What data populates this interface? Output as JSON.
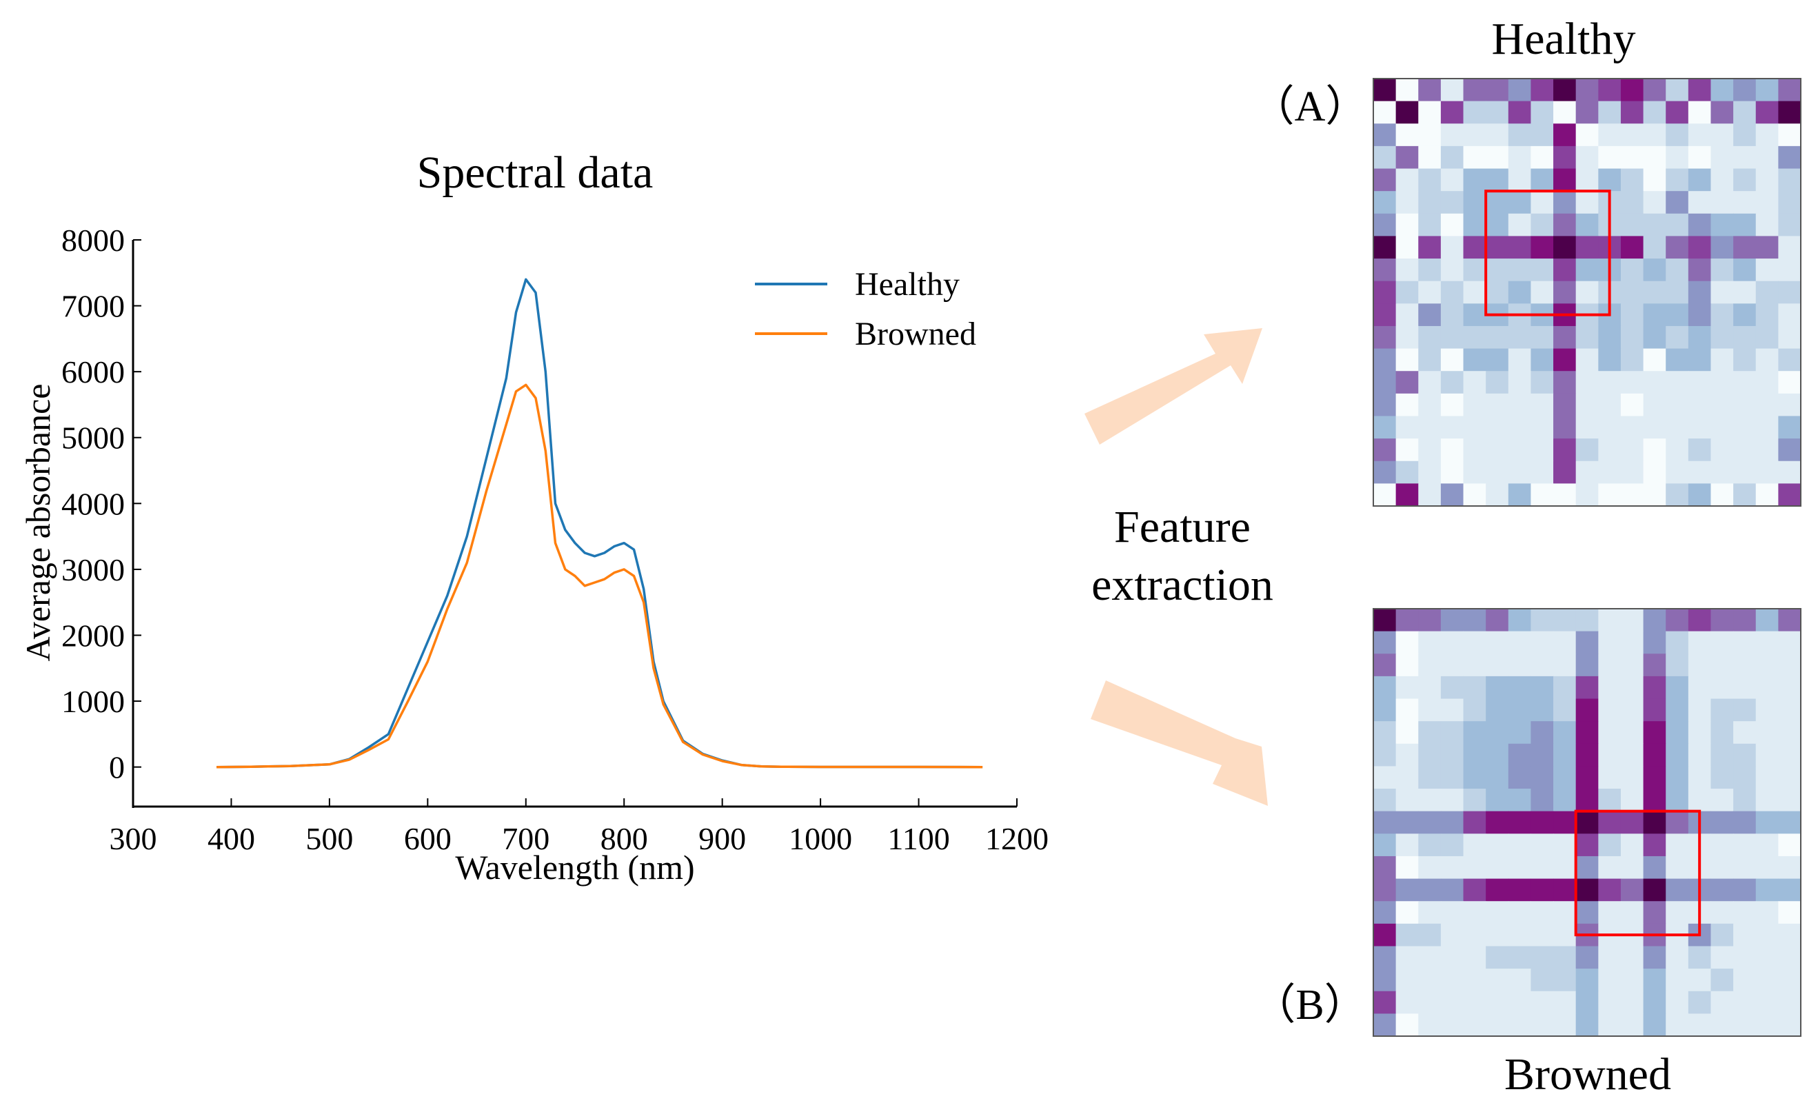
{
  "chart_data": [
    {
      "type": "line",
      "title": "Spectral data",
      "xlabel": "Wavelength (nm)",
      "ylabel": "Average absorbance",
      "xlim": [
        300,
        1200
      ],
      "ylim": [
        -600,
        8000
      ],
      "xticks": [
        300,
        400,
        500,
        600,
        700,
        800,
        900,
        1000,
        1100,
        1200
      ],
      "yticks": [
        0,
        1000,
        2000,
        3000,
        4000,
        5000,
        6000,
        7000,
        8000
      ],
      "legend_position": "top-right",
      "series": [
        {
          "name": "Healthy",
          "color": "#1f77b4",
          "x": [
            385,
            420,
            460,
            500,
            520,
            540,
            560,
            580,
            600,
            620,
            640,
            660,
            680,
            690,
            700,
            710,
            720,
            730,
            740,
            750,
            760,
            770,
            780,
            790,
            800,
            810,
            820,
            830,
            840,
            860,
            880,
            900,
            920,
            940,
            960,
            1000,
            1100,
            1165
          ],
          "y": [
            0,
            5,
            15,
            40,
            120,
            300,
            500,
            1200,
            1900,
            2600,
            3500,
            4700,
            5900,
            6900,
            7400,
            7200,
            6000,
            4000,
            3600,
            3400,
            3250,
            3200,
            3250,
            3350,
            3400,
            3300,
            2700,
            1600,
            1000,
            400,
            200,
            100,
            30,
            10,
            5,
            2,
            2,
            0
          ]
        },
        {
          "name": "Browned",
          "color": "#ff7f0e",
          "x": [
            385,
            420,
            460,
            500,
            520,
            540,
            560,
            580,
            600,
            620,
            640,
            660,
            680,
            690,
            700,
            710,
            720,
            730,
            740,
            750,
            760,
            770,
            780,
            790,
            800,
            810,
            820,
            830,
            840,
            860,
            880,
            900,
            920,
            940,
            960,
            1000,
            1100,
            1165
          ],
          "y": [
            0,
            5,
            15,
            40,
            110,
            260,
            420,
            1000,
            1600,
            2400,
            3100,
            4200,
            5200,
            5700,
            5800,
            5600,
            4800,
            3400,
            3000,
            2900,
            2750,
            2800,
            2850,
            2950,
            3000,
            2900,
            2500,
            1500,
            950,
            380,
            190,
            90,
            30,
            10,
            5,
            2,
            2,
            0
          ]
        }
      ]
    },
    {
      "type": "heatmap",
      "title": "Healthy",
      "panel_label": "（A）",
      "rows": 19,
      "cols": 19,
      "colormap": [
        "#f7fcfd",
        "#e0ecf4",
        "#bfd3e6",
        "#9ebcda",
        "#8c96c6",
        "#8c6bb1",
        "#88419d",
        "#810f7c",
        "#4d004b"
      ],
      "highlight": {
        "rows": [
          5,
          10
        ],
        "cols": [
          5,
          10
        ],
        "color": "#ff0000"
      },
      "values": [
        [
          8,
          0,
          5,
          1,
          5,
          5,
          4,
          6,
          8,
          5,
          6,
          7,
          5,
          2,
          6,
          3,
          4,
          3,
          5
        ],
        [
          0,
          8,
          0,
          6,
          2,
          2,
          6,
          2,
          0,
          5,
          2,
          6,
          2,
          6,
          0,
          5,
          2,
          6,
          8
        ],
        [
          4,
          0,
          0,
          1,
          1,
          1,
          2,
          2,
          7,
          0,
          1,
          1,
          1,
          2,
          1,
          1,
          2,
          1,
          0
        ],
        [
          2,
          5,
          0,
          2,
          0,
          0,
          1,
          0,
          6,
          1,
          0,
          0,
          0,
          1,
          0,
          1,
          1,
          1,
          4
        ],
        [
          5,
          1,
          2,
          1,
          3,
          3,
          1,
          3,
          7,
          1,
          3,
          2,
          0,
          2,
          3,
          1,
          2,
          1,
          2
        ],
        [
          3,
          1,
          2,
          2,
          3,
          3,
          3,
          1,
          4,
          1,
          2,
          2,
          1,
          4,
          1,
          1,
          1,
          1,
          2
        ],
        [
          4,
          0,
          2,
          0,
          3,
          3,
          1,
          2,
          5,
          3,
          2,
          2,
          2,
          2,
          4,
          3,
          3,
          1,
          2
        ],
        [
          8,
          0,
          6,
          1,
          6,
          6,
          6,
          7,
          8,
          6,
          6,
          7,
          2,
          5,
          6,
          4,
          5,
          5,
          1
        ],
        [
          5,
          1,
          2,
          1,
          2,
          2,
          2,
          2,
          6,
          3,
          3,
          2,
          3,
          2,
          5,
          2,
          3,
          1,
          1
        ],
        [
          6,
          2,
          1,
          2,
          1,
          2,
          3,
          1,
          5,
          1,
          2,
          2,
          2,
          2,
          4,
          1,
          1,
          2,
          2
        ],
        [
          6,
          1,
          4,
          2,
          3,
          3,
          2,
          3,
          7,
          2,
          3,
          2,
          3,
          3,
          4,
          2,
          3,
          2,
          1
        ],
        [
          5,
          1,
          2,
          2,
          2,
          2,
          2,
          2,
          5,
          2,
          3,
          2,
          3,
          2,
          3,
          2,
          2,
          2,
          1
        ],
        [
          4,
          0,
          2,
          0,
          3,
          3,
          1,
          3,
          7,
          1,
          3,
          2,
          0,
          3,
          3,
          1,
          2,
          1,
          2
        ],
        [
          4,
          5,
          1,
          2,
          1,
          2,
          1,
          2,
          5,
          1,
          1,
          1,
          1,
          1,
          1,
          1,
          1,
          1,
          0
        ],
        [
          4,
          0,
          1,
          0,
          1,
          1,
          1,
          1,
          5,
          1,
          1,
          0,
          1,
          1,
          1,
          1,
          1,
          1,
          1
        ],
        [
          3,
          1,
          1,
          1,
          1,
          1,
          1,
          1,
          5,
          1,
          1,
          1,
          1,
          1,
          1,
          1,
          1,
          1,
          3
        ],
        [
          5,
          0,
          1,
          0,
          1,
          1,
          1,
          1,
          6,
          2,
          1,
          1,
          0,
          1,
          2,
          1,
          1,
          1,
          4
        ],
        [
          4,
          2,
          1,
          0,
          1,
          1,
          1,
          1,
          6,
          1,
          1,
          1,
          0,
          1,
          1,
          1,
          1,
          1,
          1
        ],
        [
          0,
          7,
          1,
          4,
          0,
          1,
          3,
          0,
          0,
          1,
          0,
          0,
          0,
          2,
          3,
          0,
          2,
          0,
          6
        ]
      ]
    },
    {
      "type": "heatmap",
      "title": "Browned",
      "panel_label": "（B）",
      "rows": 19,
      "cols": 19,
      "colormap": [
        "#f7fcfd",
        "#e0ecf4",
        "#bfd3e6",
        "#9ebcda",
        "#8c96c6",
        "#8c6bb1",
        "#88419d",
        "#810f7c",
        "#4d004b"
      ],
      "highlight": {
        "rows": [
          9,
          14
        ],
        "cols": [
          9,
          14
        ],
        "color": "#ff0000"
      },
      "values": [
        [
          8,
          5,
          5,
          4,
          4,
          5,
          3,
          2,
          2,
          2,
          1,
          1,
          4,
          5,
          6,
          5,
          5,
          3,
          5
        ],
        [
          4,
          0,
          1,
          1,
          1,
          1,
          1,
          1,
          1,
          4,
          1,
          1,
          4,
          2,
          1,
          1,
          1,
          1,
          1
        ],
        [
          5,
          0,
          1,
          1,
          1,
          1,
          1,
          1,
          1,
          4,
          1,
          1,
          5,
          2,
          1,
          1,
          1,
          1,
          1
        ],
        [
          3,
          1,
          1,
          2,
          2,
          3,
          3,
          3,
          2,
          6,
          1,
          1,
          6,
          3,
          1,
          1,
          1,
          1,
          1
        ],
        [
          3,
          0,
          1,
          1,
          2,
          3,
          3,
          3,
          2,
          7,
          1,
          1,
          6,
          3,
          1,
          2,
          2,
          1,
          1
        ],
        [
          2,
          0,
          2,
          2,
          3,
          3,
          3,
          4,
          3,
          7,
          1,
          1,
          7,
          3,
          1,
          2,
          1,
          1,
          1
        ],
        [
          2,
          1,
          2,
          2,
          3,
          3,
          4,
          4,
          3,
          7,
          1,
          1,
          7,
          3,
          1,
          2,
          2,
          1,
          1
        ],
        [
          1,
          1,
          2,
          2,
          3,
          3,
          4,
          4,
          3,
          7,
          1,
          1,
          7,
          3,
          1,
          2,
          2,
          1,
          1
        ],
        [
          2,
          1,
          1,
          1,
          2,
          3,
          3,
          4,
          3,
          7,
          2,
          1,
          7,
          3,
          1,
          1,
          2,
          1,
          1
        ],
        [
          4,
          4,
          4,
          4,
          6,
          7,
          7,
          7,
          7,
          8,
          6,
          6,
          8,
          5,
          4,
          4,
          4,
          3,
          3
        ],
        [
          3,
          1,
          2,
          2,
          1,
          1,
          1,
          1,
          1,
          6,
          2,
          1,
          6,
          1,
          1,
          1,
          1,
          1,
          0
        ],
        [
          5,
          0,
          1,
          1,
          1,
          1,
          1,
          1,
          1,
          4,
          1,
          1,
          4,
          1,
          1,
          1,
          1,
          1,
          1
        ],
        [
          5,
          4,
          4,
          4,
          6,
          7,
          7,
          7,
          7,
          8,
          6,
          5,
          8,
          4,
          4,
          4,
          4,
          3,
          3
        ],
        [
          4,
          0,
          1,
          1,
          1,
          1,
          1,
          1,
          1,
          4,
          1,
          1,
          5,
          1,
          1,
          1,
          1,
          1,
          0
        ],
        [
          7,
          2,
          2,
          1,
          1,
          1,
          1,
          1,
          1,
          5,
          1,
          1,
          5,
          1,
          4,
          2,
          1,
          1,
          1
        ],
        [
          4,
          1,
          1,
          1,
          1,
          2,
          2,
          2,
          2,
          4,
          1,
          1,
          4,
          1,
          2,
          1,
          1,
          1,
          1
        ],
        [
          4,
          1,
          1,
          1,
          1,
          1,
          1,
          2,
          2,
          3,
          1,
          1,
          3,
          1,
          1,
          2,
          1,
          1,
          1
        ],
        [
          6,
          1,
          1,
          1,
          1,
          1,
          1,
          1,
          1,
          3,
          1,
          1,
          3,
          1,
          2,
          1,
          1,
          1,
          1
        ],
        [
          4,
          0,
          1,
          1,
          1,
          1,
          1,
          1,
          1,
          3,
          1,
          1,
          3,
          1,
          1,
          1,
          1,
          1,
          1
        ]
      ]
    }
  ],
  "center_label": [
    "Feature",
    "extraction"
  ]
}
